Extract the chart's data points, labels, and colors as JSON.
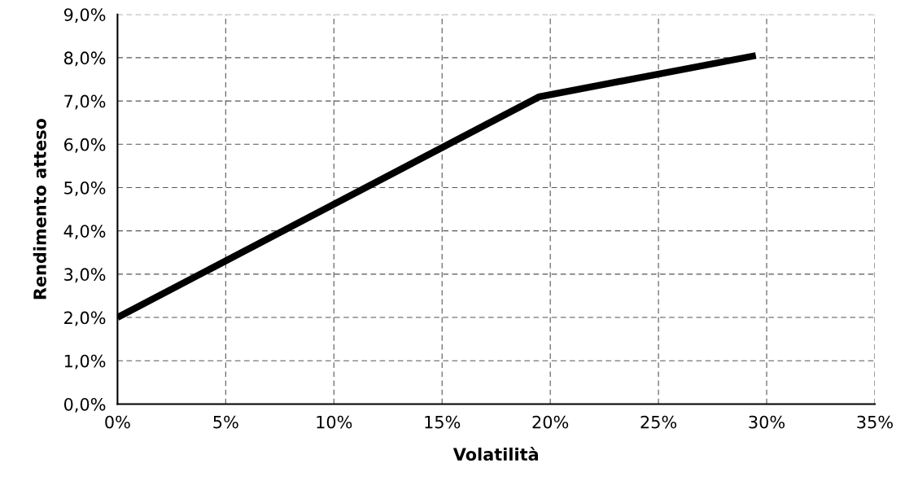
{
  "chart_data": {
    "type": "line",
    "xlabel": "Volatilità",
    "ylabel": "Rendimento atteso",
    "x": [
      0,
      19.5,
      29.5
    ],
    "series": [
      {
        "color": "#000000",
        "values": [
          2.0,
          7.1,
          8.05
        ]
      }
    ],
    "xlim": [
      0,
      35
    ],
    "ylim": [
      0,
      9
    ],
    "xticks": [
      {
        "value": 0,
        "label": "0%"
      },
      {
        "value": 5,
        "label": "5%"
      },
      {
        "value": 10,
        "label": "10%"
      },
      {
        "value": 15,
        "label": "15%"
      },
      {
        "value": 20,
        "label": "20%"
      },
      {
        "value": 25,
        "label": "25%"
      },
      {
        "value": 30,
        "label": "30%"
      },
      {
        "value": 35,
        "label": "35%"
      }
    ],
    "yticks": [
      {
        "value": 0,
        "label": "0,0%"
      },
      {
        "value": 1,
        "label": "1,0%"
      },
      {
        "value": 2,
        "label": "2,0%"
      },
      {
        "value": 3,
        "label": "3,0%"
      },
      {
        "value": 4,
        "label": "4,0%"
      },
      {
        "value": 5,
        "label": "5,0%"
      },
      {
        "value": 6,
        "label": "6,0%"
      },
      {
        "value": 7,
        "label": "7,0%"
      },
      {
        "value": 8,
        "label": "8,0%"
      },
      {
        "value": 9,
        "label": "9,0%"
      }
    ],
    "grid": true,
    "line_style": "solid"
  }
}
